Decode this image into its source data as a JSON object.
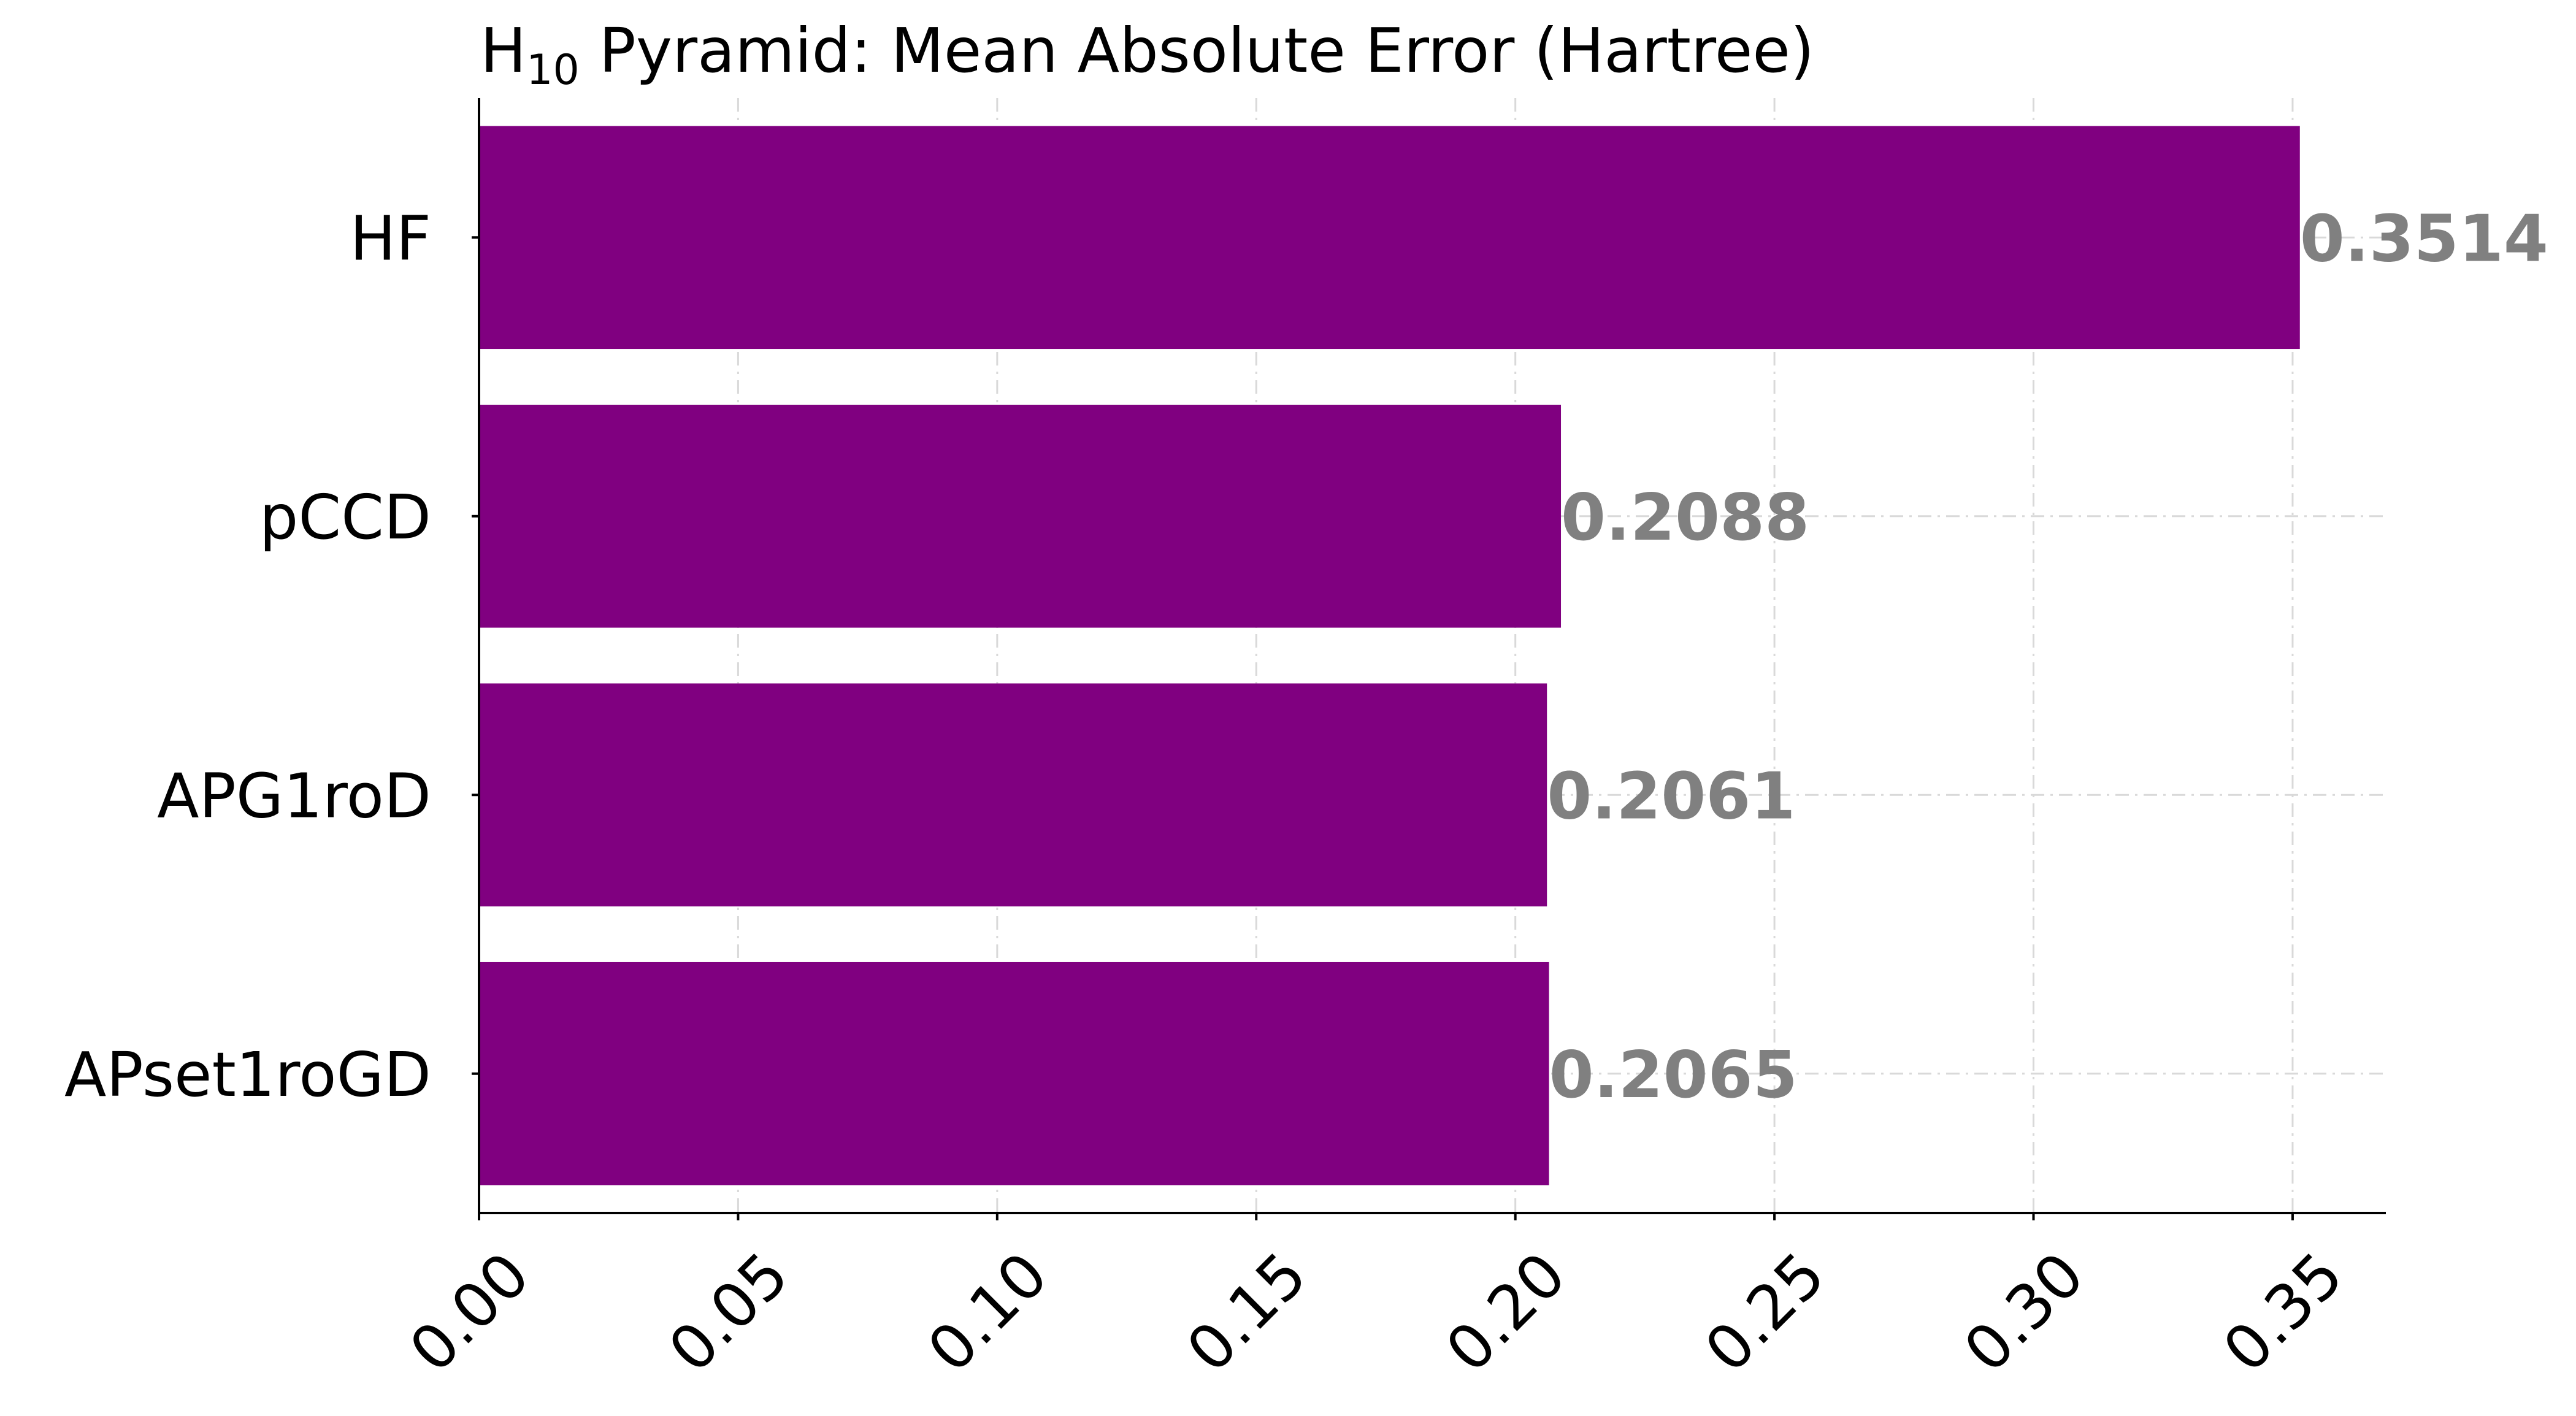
{
  "chart_data": {
    "type": "bar",
    "orientation": "horizontal",
    "title": {
      "base": "H",
      "subscript": "10",
      "rest": " Pyramid: Mean Absolute Error (Hartree)"
    },
    "xlabel": "",
    "ylabel": "",
    "categories": [
      "HF",
      "pCCD",
      "APG1roD",
      "APset1roGD"
    ],
    "values": [
      0.3514,
      0.2088,
      0.2061,
      0.2065
    ],
    "value_labels": [
      "0.3514",
      "0.2088",
      "0.2061",
      "0.2065"
    ],
    "xlim": [
      0,
      0.368
    ],
    "xticks": [
      0,
      0.05,
      0.1,
      0.15,
      0.2,
      0.25,
      0.3,
      0.35
    ],
    "xtick_labels": [
      "0.00",
      "0.05",
      "0.10",
      "0.15",
      "0.20",
      "0.25",
      "0.30",
      "0.35"
    ],
    "grid": true,
    "colors": {
      "bar": "#800080",
      "value_label": "#808080",
      "grid": "#d9d9d9",
      "axis": "#000000"
    }
  }
}
